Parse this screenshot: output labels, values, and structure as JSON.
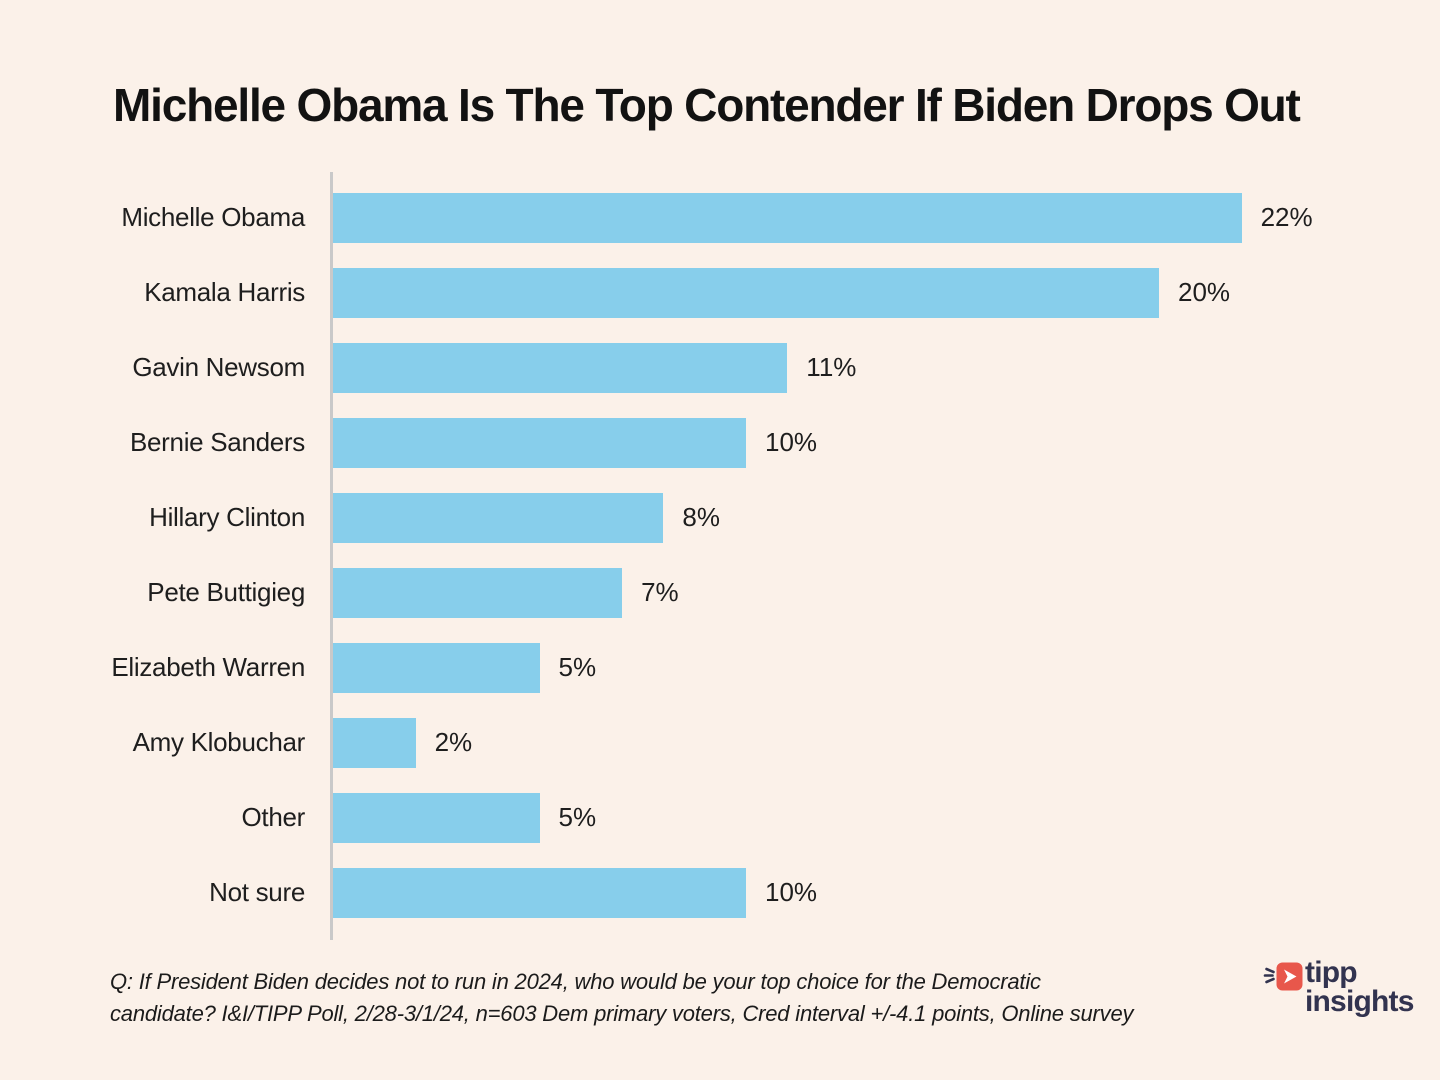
{
  "page": {
    "background_color": "#FBF1E9",
    "text_color": "#1E1E1E"
  },
  "title": "Michelle Obama Is The Top Contender If Biden Drops Out",
  "chart_data": {
    "type": "bar",
    "orientation": "horizontal",
    "title": "Michelle Obama Is The Top Contender If Biden Drops Out",
    "categories": [
      "Michelle Obama",
      "Kamala Harris",
      "Gavin Newsom",
      "Bernie Sanders",
      "Hillary Clinton",
      "Pete Buttigieg",
      "Elizabeth Warren",
      "Amy Klobuchar",
      "Other",
      "Not sure"
    ],
    "values": [
      22,
      20,
      11,
      10,
      8,
      7,
      5,
      2,
      5,
      10
    ],
    "value_suffix": "%",
    "xlabel": "",
    "ylabel": "",
    "xlim": [
      0,
      24
    ],
    "grid": false,
    "legend": false,
    "bar_color": "#87CEEB",
    "axis_color": "#C9C9C9"
  },
  "footnote": {
    "line1": "Q: If President Biden decides not to run in 2024, who would be your top choice for the Democratic",
    "line2": "candidate? I&I/TIPP Poll, 2/28-3/1/24, n=603 Dem primary  voters, Cred interval +/-4.1 points, Online survey"
  },
  "logo": {
    "line1": "tipp",
    "line2": "insights",
    "navy_color": "#32334F",
    "red_color": "#E8574B",
    "icon": "tipp-insights-megaphone-icon"
  }
}
